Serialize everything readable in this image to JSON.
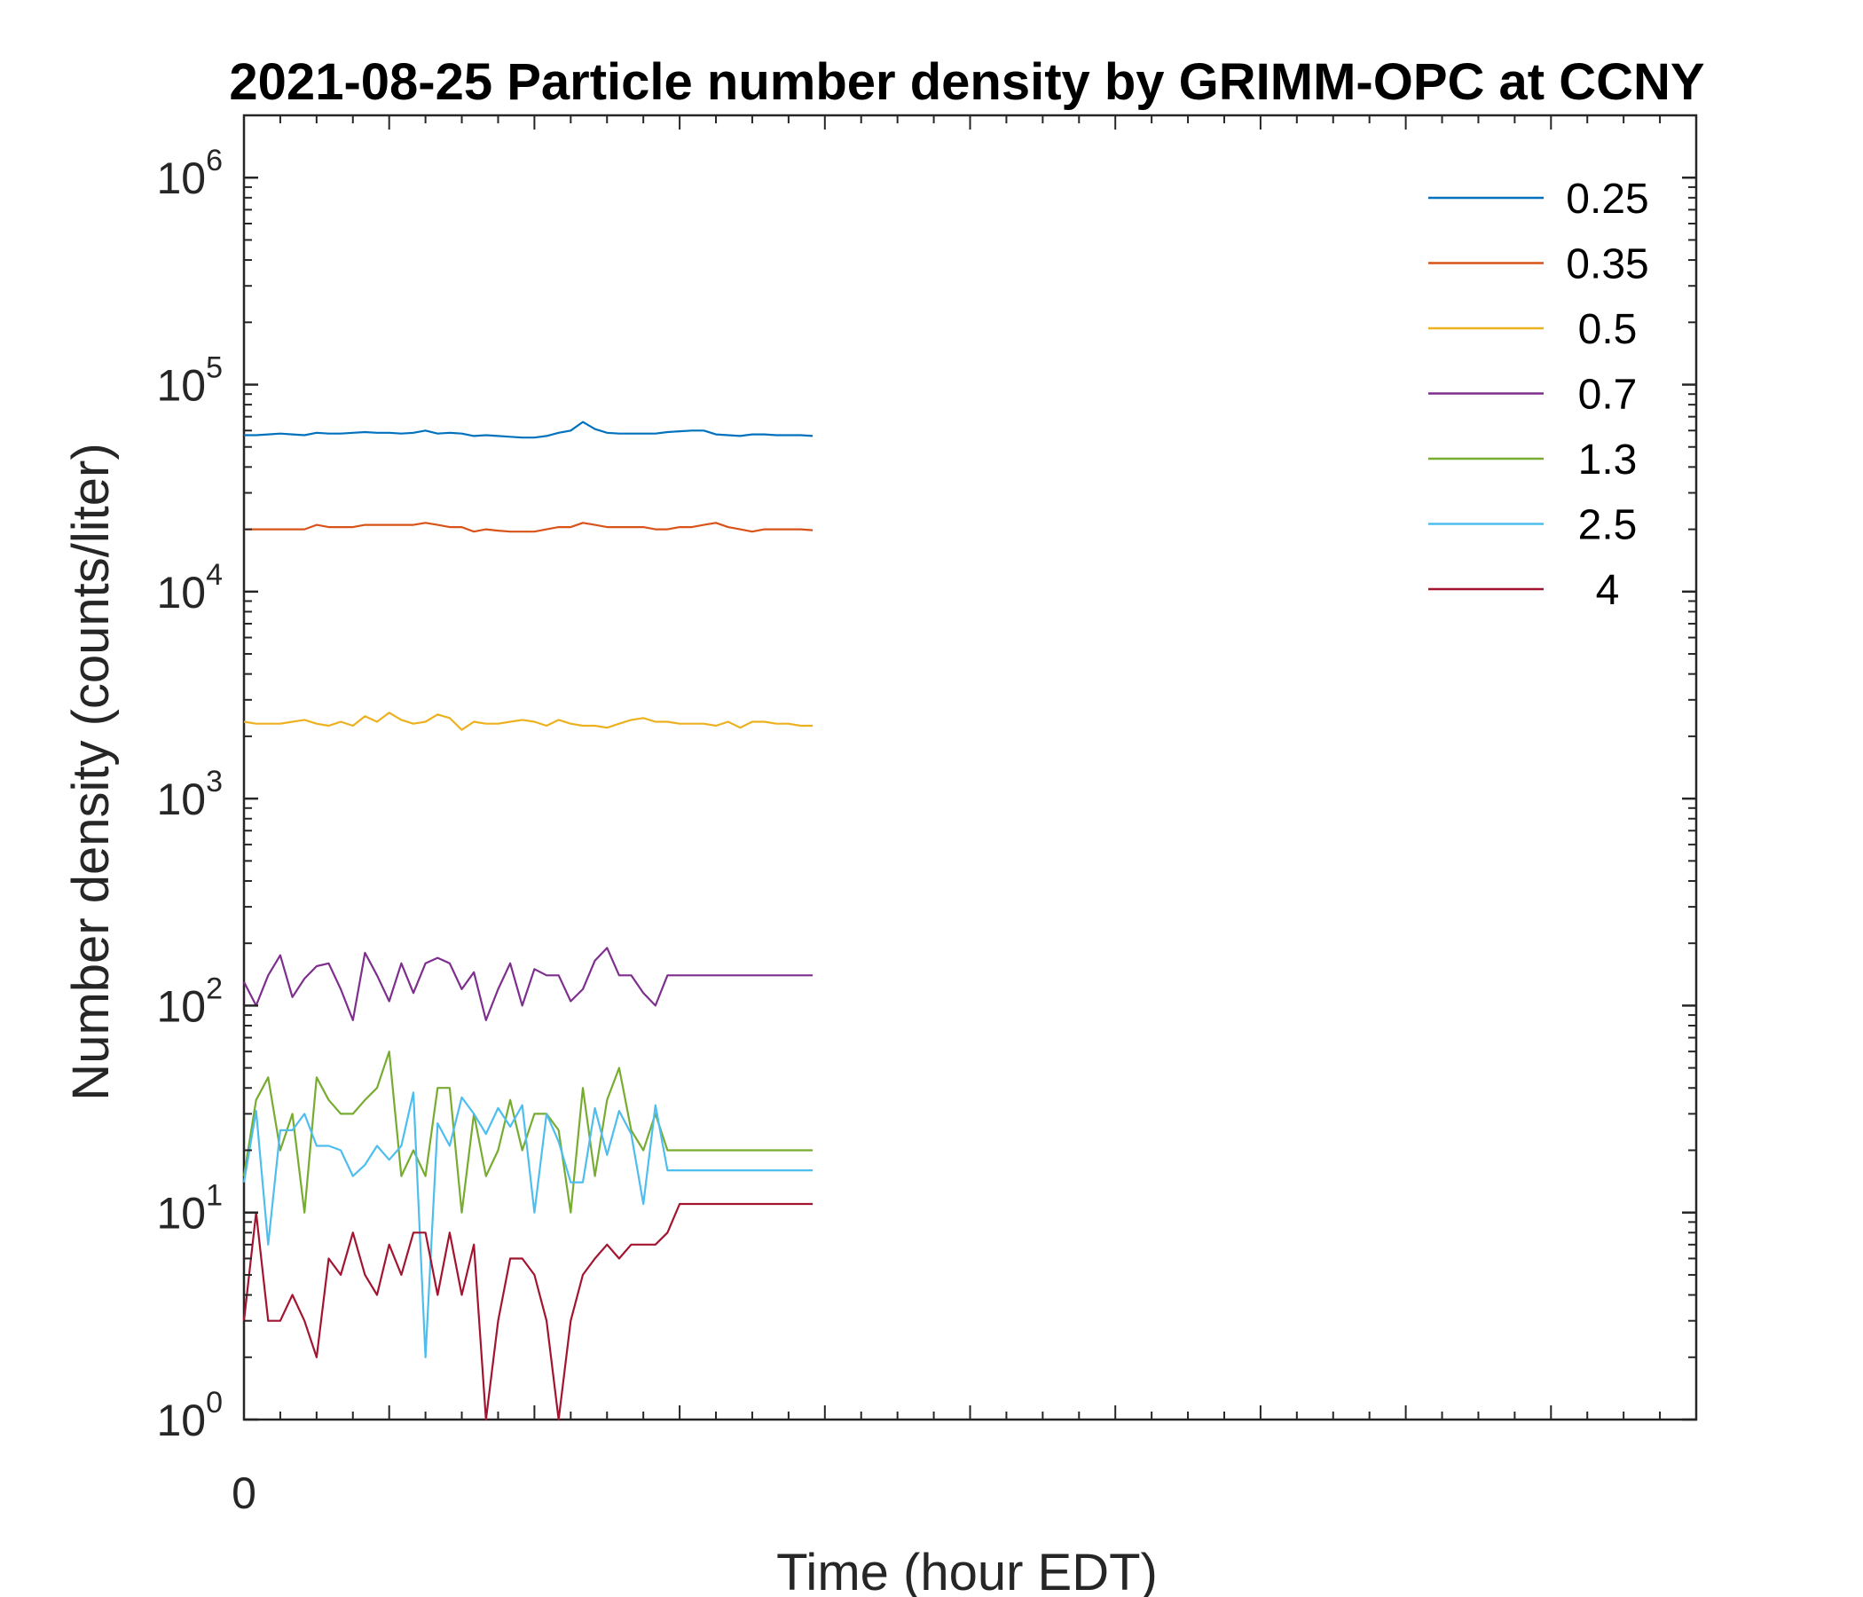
{
  "chart_data": {
    "type": "line",
    "title": "2021-08-25 Particle number density by GRIMM-OPC at CCNY",
    "xlabel": "Time (hour EDT)",
    "ylabel": "Number density (counts/liter)",
    "yscale": "log",
    "ylim": [
      1,
      2000000
    ],
    "xlim": [
      0,
      20
    ],
    "x_tick_labels": [
      "0"
    ],
    "y_ticks": [
      {
        "base": "10",
        "exp": "0",
        "value": 1
      },
      {
        "base": "10",
        "exp": "1",
        "value": 10
      },
      {
        "base": "10",
        "exp": "2",
        "value": 100
      },
      {
        "base": "10",
        "exp": "3",
        "value": 1000
      },
      {
        "base": "10",
        "exp": "4",
        "value": 10000
      },
      {
        "base": "10",
        "exp": "5",
        "value": 100000
      },
      {
        "base": "10",
        "exp": "6",
        "value": 1000000
      }
    ],
    "grid": false,
    "legend_position": "top-right",
    "x": [
      0,
      0.167,
      0.333,
      0.5,
      0.667,
      0.833,
      1,
      1.167,
      1.333,
      1.5,
      1.667,
      1.833,
      2,
      2.167,
      2.333,
      2.5,
      2.667,
      2.833,
      3,
      3.167,
      3.333,
      3.5,
      3.667,
      3.833,
      4,
      4.167,
      4.333,
      4.5,
      4.667,
      4.833,
      5,
      5.167,
      5.333,
      5.5,
      5.667,
      5.833,
      6,
      6.167,
      6.333,
      6.5,
      6.667,
      6.833,
      7,
      7.167,
      7.333,
      7.5,
      7.667,
      7.833
    ],
    "series": [
      {
        "name": "0.25",
        "color": "#0072BD",
        "values": [
          57000,
          57000,
          57500,
          58000,
          57500,
          57000,
          58500,
          58000,
          58000,
          58500,
          59000,
          58500,
          58500,
          58000,
          58500,
          60000,
          58000,
          58500,
          58000,
          56500,
          57000,
          56500,
          56000,
          55500,
          55500,
          56500,
          58500,
          60000,
          66000,
          61000,
          58500,
          58000,
          58000,
          58000,
          58000,
          59000,
          59500,
          60000,
          60000,
          57500,
          57000,
          56500,
          57500,
          57500,
          57000,
          57000,
          57000,
          56500
        ]
      },
      {
        "name": "0.35",
        "color": "#D95319",
        "values": [
          20000,
          20000,
          20000,
          20000,
          20000,
          20000,
          21000,
          20500,
          20500,
          20500,
          21000,
          21000,
          21000,
          21000,
          21000,
          21500,
          21000,
          20500,
          20500,
          19500,
          20000,
          19700,
          19500,
          19500,
          19500,
          20000,
          20500,
          20500,
          21500,
          21000,
          20500,
          20500,
          20500,
          20500,
          20000,
          20000,
          20500,
          20500,
          21000,
          21500,
          20500,
          20000,
          19500,
          20000,
          20000,
          20000,
          20000,
          19800
        ]
      },
      {
        "name": "0.5",
        "color": "#EDB120",
        "values": [
          2350,
          2300,
          2300,
          2300,
          2350,
          2400,
          2300,
          2250,
          2350,
          2250,
          2500,
          2350,
          2600,
          2400,
          2300,
          2350,
          2550,
          2450,
          2150,
          2350,
          2300,
          2300,
          2350,
          2400,
          2350,
          2250,
          2400,
          2300,
          2250,
          2250,
          2200,
          2300,
          2400,
          2450,
          2350,
          2350,
          2300,
          2300,
          2300,
          2250,
          2350,
          2200,
          2350,
          2350,
          2300,
          2300,
          2250,
          2250
        ]
      },
      {
        "name": "0.7",
        "color": "#7E2F8E",
        "values": [
          130,
          100,
          140,
          175,
          110,
          135,
          155,
          160,
          120,
          85,
          180,
          140,
          105,
          160,
          115,
          160,
          170,
          160,
          120,
          145,
          85,
          120,
          160,
          100,
          150,
          140,
          140,
          105,
          120,
          165,
          190,
          140,
          140,
          115,
          100,
          140,
          140,
          140,
          140,
          140,
          140,
          140,
          140,
          140,
          140,
          140,
          140,
          140
        ]
      },
      {
        "name": "1.3",
        "color": "#77AC30",
        "values": [
          15,
          35,
          45,
          20,
          30,
          10,
          45,
          35,
          30,
          30,
          35,
          40,
          60,
          15,
          20,
          15,
          40,
          40,
          10,
          30,
          15,
          20,
          35,
          20,
          30,
          30,
          25,
          10,
          40,
          15,
          35,
          50,
          25,
          20,
          30,
          20,
          20,
          20,
          20,
          20,
          20,
          20,
          20,
          20,
          20,
          20,
          20,
          20
        ]
      },
      {
        "name": "2.5",
        "color": "#4DBEEE",
        "values": [
          14,
          31,
          7,
          25,
          25,
          30,
          21,
          21,
          20,
          15,
          17,
          21,
          18,
          21,
          38,
          2,
          27,
          21,
          36,
          30,
          24,
          32,
          26,
          33,
          10,
          30,
          22,
          14,
          14,
          32,
          19,
          31,
          24,
          11,
          33,
          16,
          16,
          16,
          16,
          16,
          16,
          16,
          16,
          16,
          16,
          16,
          16,
          16
        ]
      },
      {
        "name": "4",
        "color": "#A2142F",
        "values": [
          3,
          10,
          3,
          3,
          4,
          3,
          2,
          6,
          5,
          8,
          5,
          4,
          7,
          5,
          8,
          8,
          4,
          8,
          4,
          7,
          1,
          3,
          6,
          6,
          5,
          3,
          1,
          3,
          5,
          6,
          7,
          6,
          7,
          7,
          7,
          8,
          11,
          11,
          11,
          11,
          11,
          11,
          11,
          11,
          11,
          11,
          11,
          11
        ]
      }
    ]
  }
}
